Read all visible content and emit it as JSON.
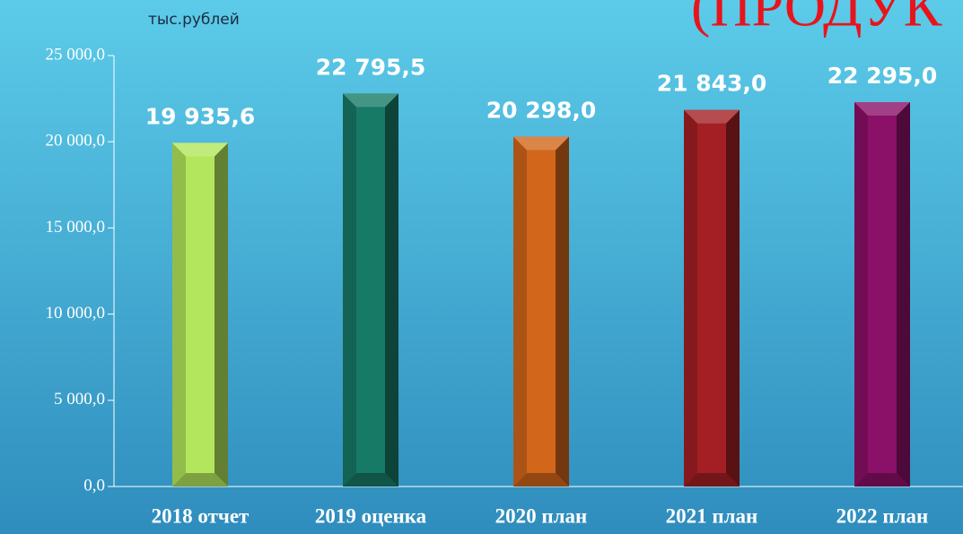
{
  "chart_data": {
    "type": "bar",
    "unit_label": "тыс.рублей",
    "annotation": "(ПРОДУК",
    "categories": [
      "2018 отчет",
      "2019 оценка",
      "2020 план",
      "2021 план",
      "2022 план"
    ],
    "values": [
      19935.6,
      22795.5,
      20298.0,
      21843.0,
      22295.0
    ],
    "value_labels": [
      "19 935,6",
      "22 795,5",
      "20 298,0",
      "21 843,0",
      "22 295,0"
    ],
    "colors": [
      "#b3e65c",
      "#177a66",
      "#d2661b",
      "#a31f23",
      "#8b1068"
    ],
    "ylim": [
      0,
      25000
    ],
    "yticks": [
      {
        "value": 0,
        "label": "0,0"
      },
      {
        "value": 5000,
        "label": "5 000,0"
      },
      {
        "value": 10000,
        "label": "10 000,0"
      },
      {
        "value": 15000,
        "label": "15 000,0"
      },
      {
        "value": 20000,
        "label": "20 000,0"
      },
      {
        "value": 25000,
        "label": "25 000,0"
      }
    ],
    "grid": false
  }
}
